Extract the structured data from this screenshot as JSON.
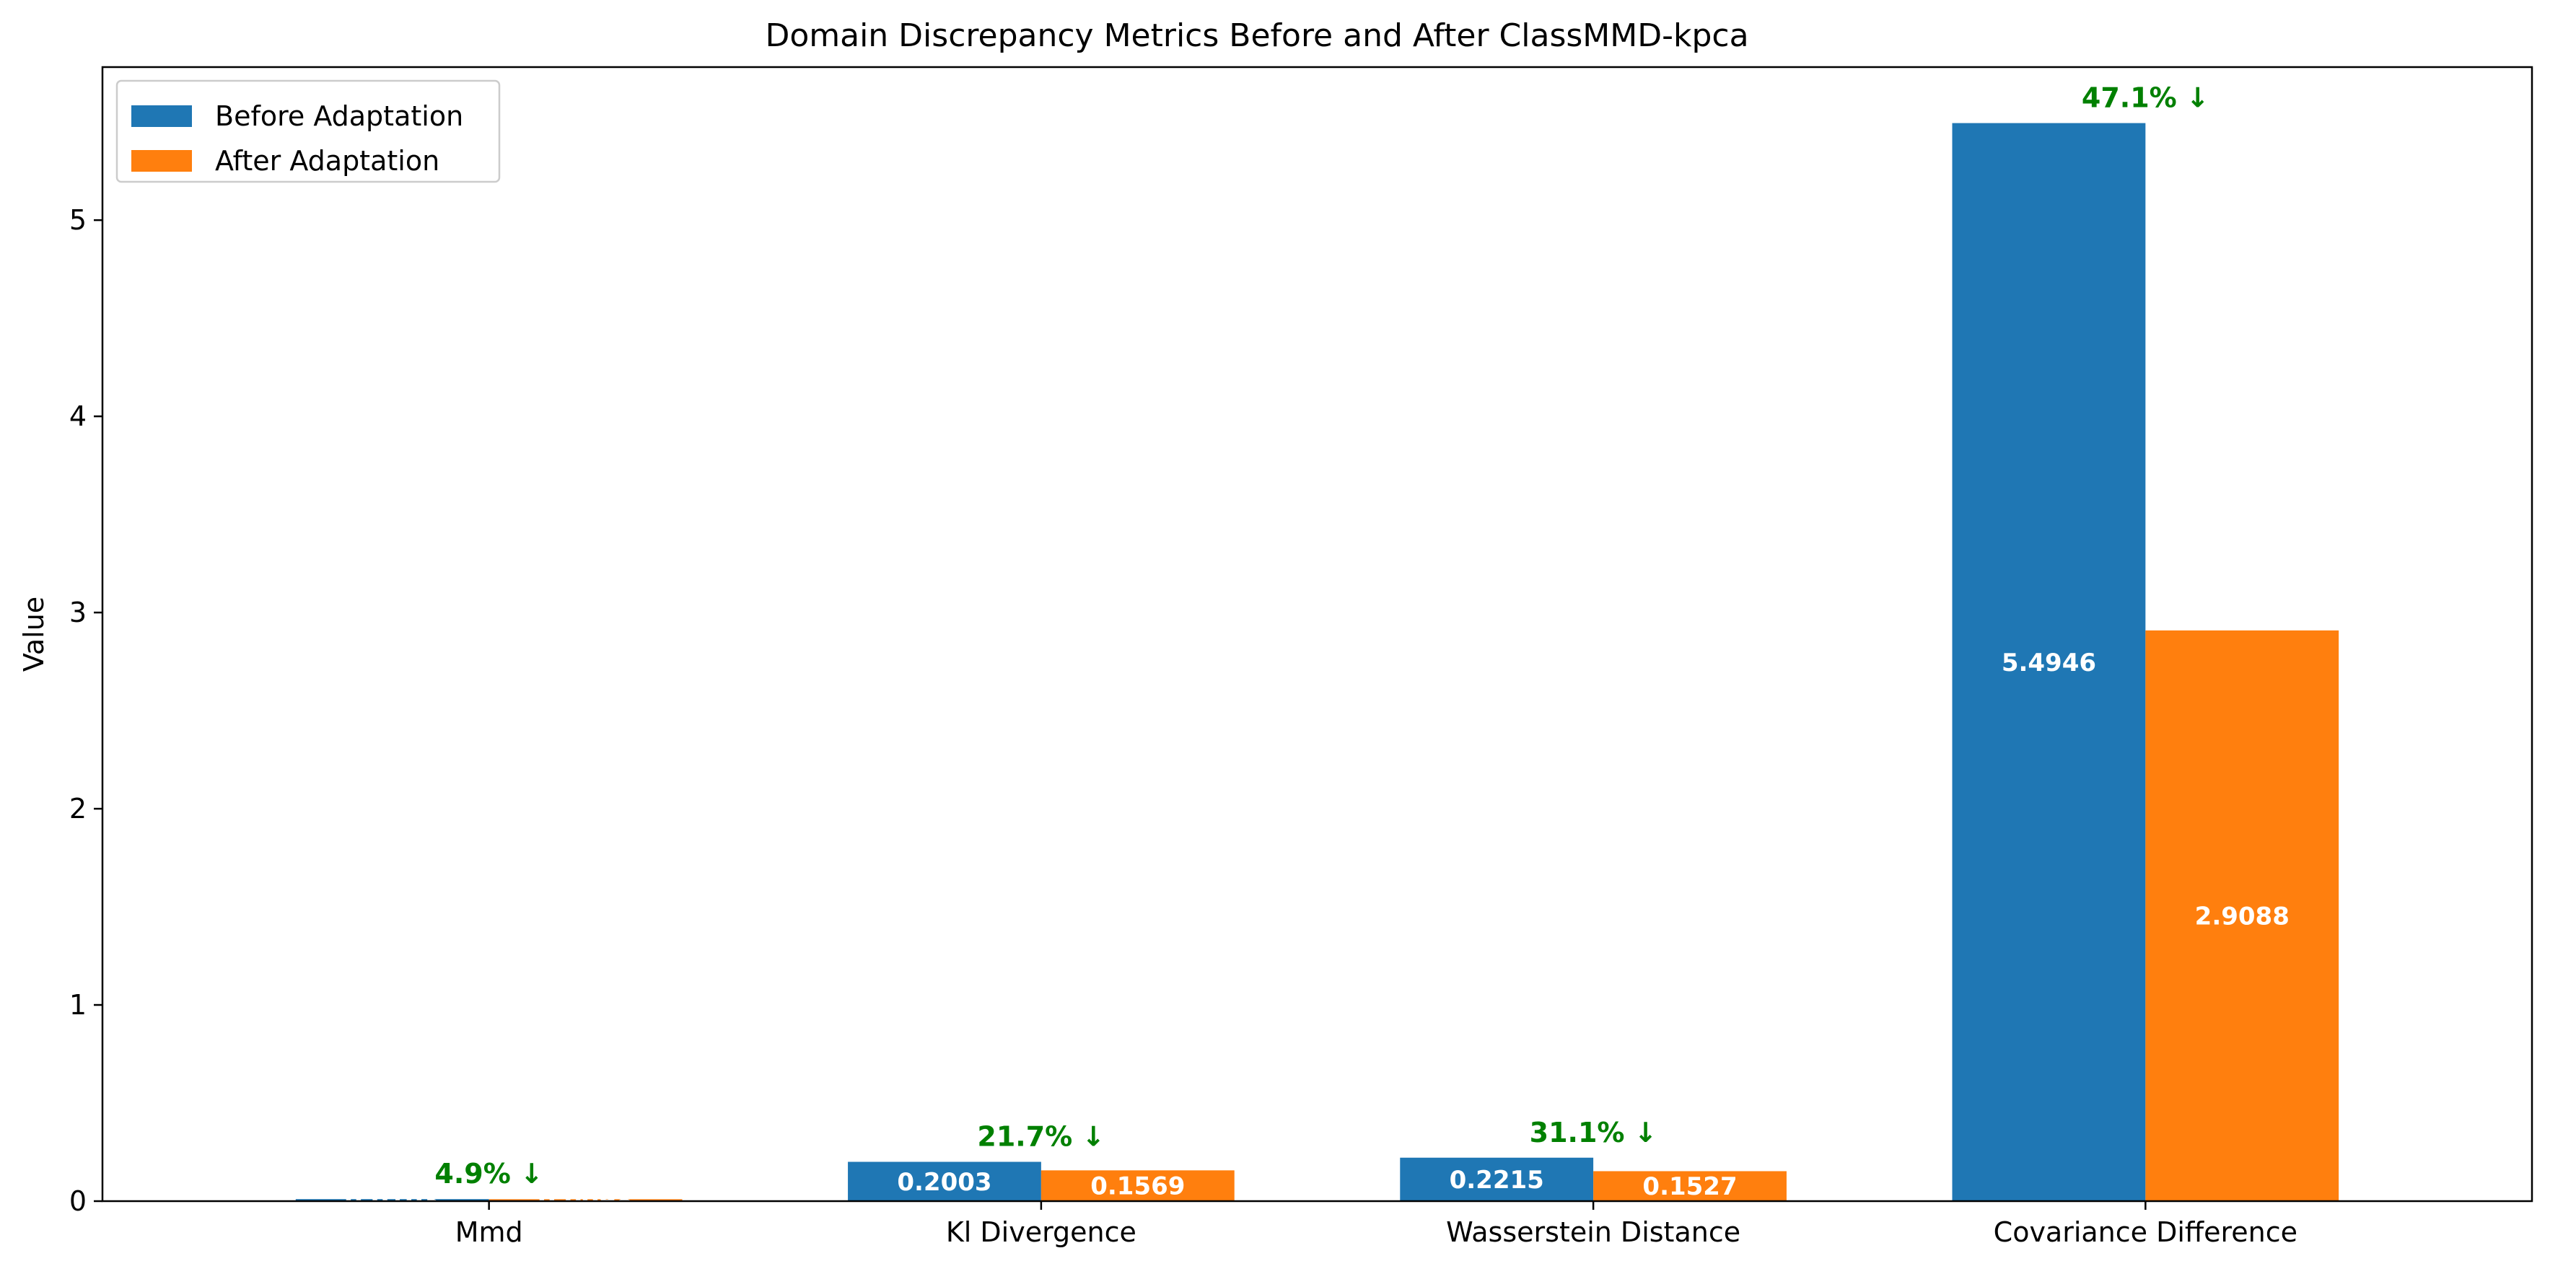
{
  "colors": {
    "before": "#1f77b4",
    "after": "#ff7f0e",
    "reduction": "#008000"
  },
  "chart_data": {
    "type": "bar",
    "title": "Domain Discrepancy Metrics Before and After ClassMMD-kpca",
    "xlabel": "",
    "ylabel": "Value",
    "ylim": [
      0,
      5.78
    ],
    "yticks": [
      "0",
      "1",
      "2",
      "3",
      "4",
      "5"
    ],
    "categories": [
      "Mmd",
      "Kl Divergence",
      "Wasserstein Distance",
      "Covariance Difference"
    ],
    "series": [
      {
        "name": "Before Adaptation",
        "values": [
          0.0103,
          0.2003,
          0.2215,
          5.4946
        ],
        "labels": [
          "0.0103",
          "0.2003",
          "0.2215",
          "5.4946"
        ]
      },
      {
        "name": "After Adaptation",
        "values": [
          0.0098,
          0.1569,
          0.1527,
          2.9088
        ],
        "labels": [
          "0.0098",
          "0.1569",
          "0.1527",
          "2.9088"
        ]
      }
    ],
    "reductions": [
      "4.9% ↓",
      "21.7% ↓",
      "31.1% ↓",
      "47.1% ↓"
    ],
    "legend": {
      "placement": "top-left",
      "entries": [
        "Before Adaptation",
        "After Adaptation"
      ]
    },
    "grid": false
  }
}
